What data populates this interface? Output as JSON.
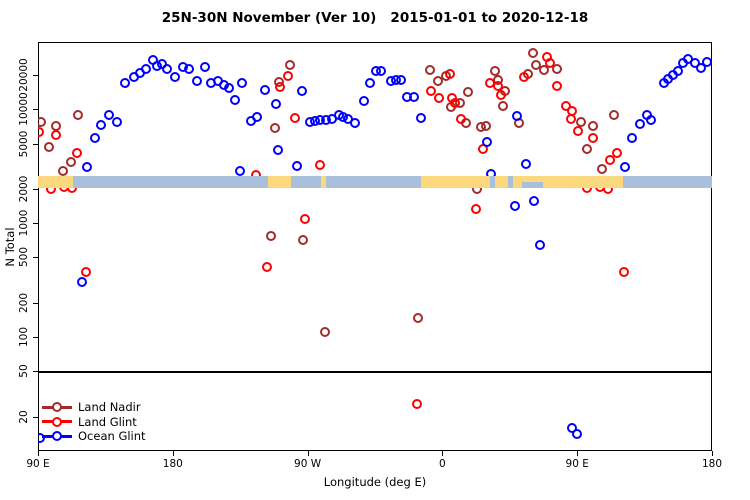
{
  "title": "25N-30N November (Ver 10)   2015-01-01 to 2020-12-18",
  "legend": {
    "items": [
      {
        "label": "Land Nadir",
        "color": "#A52A2A"
      },
      {
        "label": "Land Glint",
        "color": "#FF0000"
      },
      {
        "label": "Ocean Glint",
        "color": "#0000FF"
      }
    ]
  },
  "chart_data": {
    "type": "scatter",
    "title": "25N-30N November (Ver 10)   2015-01-01 to 2020-12-18",
    "xlabel": "Longitude (deg E)",
    "ylabel": "N Total",
    "x_scale": "linear",
    "y_scale": "log",
    "xlim": [
      90,
      540
    ],
    "ylim": [
      10,
      38900
    ],
    "grid": false,
    "legend_position": "bottom-left",
    "x_ticks": [
      {
        "lon": 90,
        "label": "90 E"
      },
      {
        "lon": 180,
        "label": "180"
      },
      {
        "lon": 270,
        "label": "90 W"
      },
      {
        "lon": 360,
        "label": "0"
      },
      {
        "lon": 450,
        "label": "90 E"
      },
      {
        "lon": 540,
        "label": "180"
      }
    ],
    "y_ticks": [
      20,
      50,
      100,
      200,
      500,
      1000,
      2000,
      5000,
      10000,
      20000
    ],
    "reference_line_y": 50,
    "land_ocean_band": {
      "value": 2000,
      "ocean_color": "#A9BFDB",
      "land_color": "#FBD77E",
      "land_segments_lon": [
        [
          90,
          113.5
        ],
        [
          243.5,
          259
        ],
        [
          279,
          282
        ],
        [
          345.5,
          480.5
        ]
      ],
      "ocean_inlets_lon": [
        {
          "from": 392,
          "to": 395,
          "full": true
        },
        {
          "from": 404,
          "to": 407,
          "full": true
        },
        {
          "from": 413,
          "to": 427,
          "full": false
        }
      ]
    },
    "series": [
      {
        "name": "Land Nadir",
        "color": "#A52A2A",
        "points": [
          [
            92,
            7740
          ],
          [
            102,
            7140
          ],
          [
            116.5,
            8910
          ],
          [
            97.5,
            4670
          ],
          [
            106.5,
            2880
          ],
          [
            112,
            3450
          ],
          [
            258.5,
            24500
          ],
          [
            251,
            17400
          ],
          [
            248,
            6860
          ],
          [
            245.5,
            774
          ],
          [
            267,
            714
          ],
          [
            281.5,
            111
          ],
          [
            343.5,
            148
          ],
          [
            383,
            2000
          ],
          [
            352,
            22100
          ],
          [
            362.5,
            19600
          ],
          [
            357,
            17700
          ],
          [
            377,
            14200
          ],
          [
            372,
            11400
          ],
          [
            366,
            10500
          ],
          [
            395,
            21700
          ],
          [
            400.5,
            10700
          ],
          [
            389,
            7140
          ],
          [
            376,
            7590
          ],
          [
            386,
            7000
          ],
          [
            420.5,
            31200
          ],
          [
            422.5,
            24500
          ],
          [
            428,
            22100
          ],
          [
            417,
            20400
          ],
          [
            436.5,
            22600
          ],
          [
            397,
            18100
          ],
          [
            402,
            14500
          ],
          [
            411,
            7590
          ],
          [
            452.5,
            7740
          ],
          [
            460.5,
            7140
          ],
          [
            456.5,
            4490
          ],
          [
            466.5,
            2990
          ],
          [
            474.5,
            8910
          ]
        ]
      },
      {
        "name": "Land Glint",
        "color": "#FF0000",
        "points": [
          [
            90.5,
            6320
          ],
          [
            102,
            5960
          ],
          [
            116,
            4140
          ],
          [
            98.5,
            2000
          ],
          [
            107.5,
            2080
          ],
          [
            112.5,
            2040
          ],
          [
            122,
            374
          ],
          [
            257,
            19600
          ],
          [
            251.5,
            15700
          ],
          [
            261.5,
            8390
          ],
          [
            278.5,
            3250
          ],
          [
            235.5,
            2650
          ],
          [
            268.5,
            1090
          ],
          [
            243,
            414
          ],
          [
            382.5,
            1340
          ],
          [
            343,
            26
          ],
          [
            352.5,
            14500
          ],
          [
            358,
            12600
          ],
          [
            366.5,
            12600
          ],
          [
            368.5,
            11400
          ],
          [
            365,
            20400
          ],
          [
            372.5,
            8220
          ],
          [
            392,
            17000
          ],
          [
            397,
            16000
          ],
          [
            399,
            13400
          ],
          [
            387,
            4490
          ],
          [
            414.5,
            19200
          ],
          [
            430,
            28800
          ],
          [
            432,
            25500
          ],
          [
            436.5,
            16000
          ],
          [
            442.5,
            10700
          ],
          [
            446.5,
            9660
          ],
          [
            446,
            8220
          ],
          [
            450.5,
            6460
          ],
          [
            460.5,
            5600
          ],
          [
            476.5,
            4140
          ],
          [
            472,
            3590
          ],
          [
            456.5,
            2040
          ],
          [
            465,
            2080
          ],
          [
            470.5,
            2000
          ],
          [
            481,
            374
          ]
        ]
      },
      {
        "name": "Ocean Glint",
        "color": "#0000FF",
        "points": [
          [
            148,
            17000
          ],
          [
            154,
            19200
          ],
          [
            158,
            20800
          ],
          [
            162,
            22600
          ],
          [
            167,
            27100
          ],
          [
            169.5,
            24000
          ],
          [
            173,
            25000
          ],
          [
            176,
            22600
          ],
          [
            181.5,
            19200
          ],
          [
            187,
            23500
          ],
          [
            191,
            22600
          ],
          [
            196,
            17700
          ],
          [
            201.5,
            23500
          ],
          [
            205.5,
            17000
          ],
          [
            210,
            17700
          ],
          [
            214,
            16300
          ],
          [
            217.5,
            15400
          ],
          [
            221.5,
            12100
          ],
          [
            226,
            17000
          ],
          [
            232,
            7910
          ],
          [
            236,
            8570
          ],
          [
            241.5,
            14800
          ],
          [
            249,
            11100
          ],
          [
            266.5,
            14500
          ],
          [
            225,
            2880
          ],
          [
            132,
            7290
          ],
          [
            137.5,
            8910
          ],
          [
            142.5,
            7740
          ],
          [
            128,
            5600
          ],
          [
            122.5,
            3120
          ],
          [
            119.5,
            306
          ],
          [
            271.5,
            7740
          ],
          [
            275,
            7910
          ],
          [
            278.5,
            8070
          ],
          [
            282.5,
            8070
          ],
          [
            286.5,
            8220
          ],
          [
            291,
            8910
          ],
          [
            293.5,
            8570
          ],
          [
            297,
            8220
          ],
          [
            301.5,
            7590
          ],
          [
            307.5,
            11800
          ],
          [
            311.5,
            17000
          ],
          [
            315.5,
            21700
          ],
          [
            319,
            21700
          ],
          [
            325.5,
            17700
          ],
          [
            329,
            18100
          ],
          [
            332.5,
            18100
          ],
          [
            336.5,
            12800
          ],
          [
            341,
            12800
          ],
          [
            345.5,
            8390
          ],
          [
            263,
            3180
          ],
          [
            250,
            4400
          ],
          [
            408.5,
            1420
          ],
          [
            421,
            1570
          ],
          [
            425,
            646
          ],
          [
            410,
            8730
          ],
          [
            416,
            3310
          ],
          [
            390,
            5160
          ],
          [
            392.5,
            2710
          ],
          [
            486.5,
            5600
          ],
          [
            492,
            7430
          ],
          [
            496.5,
            8910
          ],
          [
            499,
            8070
          ],
          [
            482,
            3120
          ],
          [
            508,
            17000
          ],
          [
            510.5,
            18400
          ],
          [
            514,
            20000
          ],
          [
            517,
            21700
          ],
          [
            520.5,
            25500
          ],
          [
            524,
            27600
          ],
          [
            528.5,
            25500
          ],
          [
            532.5,
            23100
          ],
          [
            536.5,
            26000
          ],
          [
            446.5,
            16
          ],
          [
            450,
            14
          ],
          [
            91.5,
            13
          ]
        ]
      }
    ]
  }
}
